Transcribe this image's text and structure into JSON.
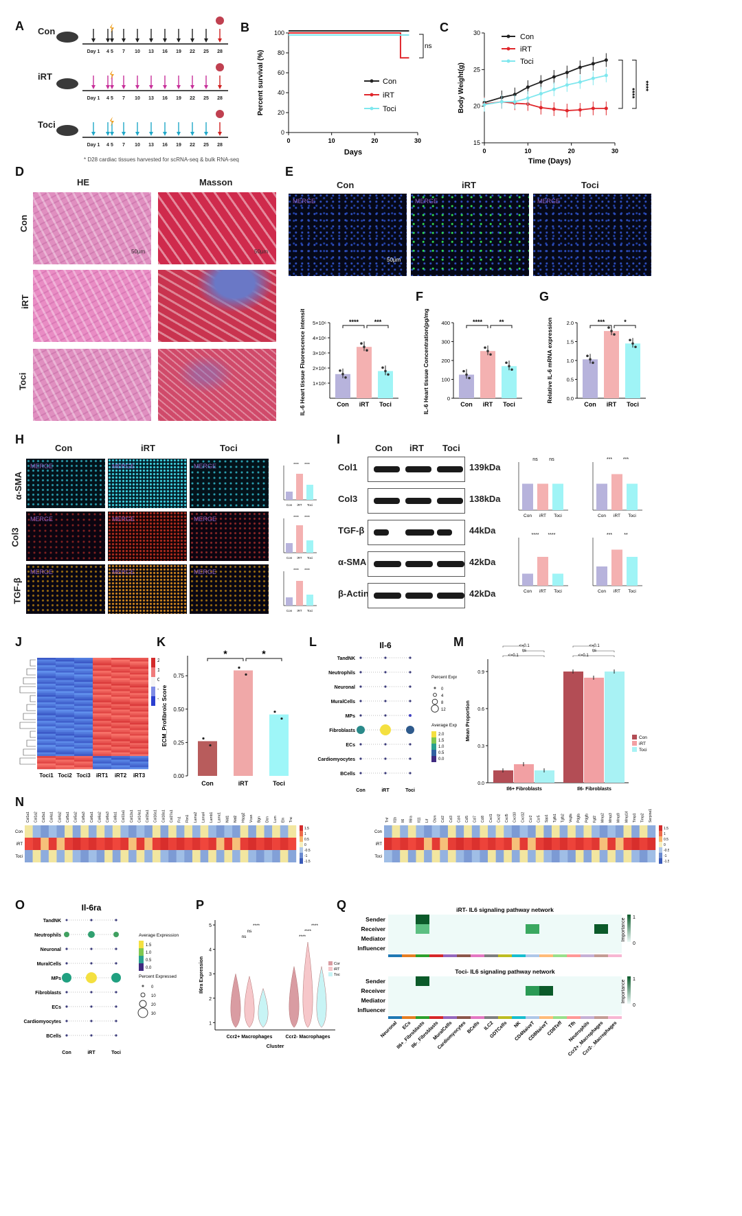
{
  "panels": {
    "A": "A",
    "B": "B",
    "C": "C",
    "D": "D",
    "E": "E",
    "F": "F",
    "G": "G",
    "H": "H",
    "I": "I",
    "J": "J",
    "K": "K",
    "L": "L",
    "M": "M",
    "N": "N",
    "O": "O",
    "P": "P",
    "Q": "Q"
  },
  "groups": [
    "Con",
    "iRT",
    "Toci"
  ],
  "colors": {
    "con": "#b7b3dc",
    "irt": "#f4b1b1",
    "toci": "#9ff4f6",
    "con_line": "#222222",
    "irt_line": "#e0262b",
    "toci_line": "#7fe7ee"
  },
  "panelA": {
    "days": [
      "Day 1",
      "4",
      "5",
      "7",
      "10",
      "13",
      "16",
      "19",
      "22",
      "25",
      "28"
    ],
    "footnote": "* D28 cardiac tissues harvested for scRNA-seq & bulk RNA-seq"
  },
  "panelB": {
    "ylabel": "Percent survival (%)",
    "xlabel": "Days",
    "ns": "ns",
    "yticks": [
      "0",
      "20",
      "40",
      "60",
      "80",
      "100"
    ],
    "xticks": [
      "0",
      "10",
      "20",
      "30"
    ]
  },
  "panelC": {
    "ylabel": "Body Weight(g)",
    "xlabel": "Time (Days)",
    "sig": "****",
    "yticks": [
      "15",
      "20",
      "25",
      "30"
    ],
    "xticks": [
      "0",
      "10",
      "20",
      "30"
    ]
  },
  "panelD": {
    "cols": [
      "HE",
      "Masson"
    ],
    "rows": [
      "Con",
      "iRT",
      "Toci"
    ],
    "scale": "50µm"
  },
  "panelE": {
    "cols": [
      "Con",
      "iRT",
      "Toci"
    ],
    "merge": "MERGE",
    "scale": "50µm"
  },
  "panelF_il6_fluor": {
    "ylabel": "IL-6 Heart tissue Fluorescence intensity",
    "yticks": [
      "1×10⁶",
      "2×10⁶",
      "3×10⁶",
      "4×10⁶",
      "5×10⁶"
    ],
    "sig1": "****",
    "sig2": "***"
  },
  "panelF": {
    "ylabel": "IL-6 Heart tissue Concentration(pg/mg)",
    "yticks": [
      "0",
      "100",
      "200",
      "300",
      "400"
    ],
    "sig1": "****",
    "sig2": "**"
  },
  "panelG": {
    "ylabel": "Relative IL-6 mRNA expression",
    "yticks": [
      "0.0",
      "0.5",
      "1.0",
      "1.5",
      "2.0"
    ],
    "sig1": "***",
    "sig2": "*"
  },
  "panelH": {
    "cols": [
      "Con",
      "iRT",
      "Toci"
    ],
    "rows": [
      "α-SMA",
      "Col3",
      "TGF-β"
    ],
    "merge": "MERGE",
    "scale": "50µm",
    "sig": "****"
  },
  "panelI": {
    "cols": [
      "Con",
      "iRT",
      "Toci"
    ],
    "proteins": [
      "Col1",
      "Col3",
      "TGF-β",
      "α-SMA",
      "β-Actin"
    ],
    "kda": [
      "139kDa",
      "138kDa",
      "44kDa",
      "42kDa",
      "42kDa"
    ],
    "bar_sigs": [
      [
        "ns",
        "ns"
      ],
      [
        "***",
        "***"
      ],
      [
        "****",
        "****"
      ],
      [
        "***",
        "**"
      ]
    ]
  },
  "panelJ": {
    "samples": [
      "Toci1",
      "Toci2",
      "Toci3",
      "iRT1",
      "iRT2",
      "iRT3"
    ],
    "scale": [
      "2",
      "1",
      "0",
      "-1",
      "-2"
    ]
  },
  "panelK": {
    "ylabel": "ECM_Profibroic Score",
    "yticks": [
      "0.00",
      "0.25",
      "0.50",
      "0.75"
    ],
    "sig": "*"
  },
  "panelL": {
    "title": "Il-6",
    "cells": [
      "TandNK",
      "Neutrophils",
      "Neuronal",
      "MuralCells",
      "MPs",
      "Fibroblasts",
      "ECs",
      "Cardiomyocytes",
      "BCells"
    ],
    "pct_title": "Percent Expressed",
    "pct": [
      "0",
      "4",
      "8",
      "12"
    ],
    "avg_title": "Average Expression",
    "avg": [
      "2.0",
      "1.5",
      "1.0",
      "0.5",
      "0.0"
    ]
  },
  "panelM": {
    "ylabel": "Mean Proportion",
    "cats": [
      "Il6+ Fibroblasts",
      "Il6- Fibroblasts"
    ],
    "yticks": [
      "0.0",
      "0.3",
      "0.6",
      "0.9"
    ],
    "p1": "ns",
    "p2": "<=0.1"
  },
  "panelN": {
    "genes_left": [
      "Col1a1",
      "Col1a2",
      "Col3a1",
      "Col4a1",
      "Col4a2",
      "Col5a1",
      "Col5a2",
      "Col5a3",
      "Col6a1",
      "Col6a2",
      "Col6a3",
      "Col8a1",
      "Col11a1",
      "Col12a1",
      "Col14a1",
      "Col15a1",
      "Col16a1",
      "Col18a1",
      "Col27a1",
      "Fn1",
      "Fbn1",
      "Lama2",
      "Lama4",
      "Lamb1",
      "Lamc1",
      "Nid1",
      "Nid2",
      "Hspg2",
      "Vcan",
      "Bgn",
      "Dcn",
      "Lum",
      "Eln",
      "Tnc"
    ],
    "genes_right": [
      "Tnf",
      "Il1b",
      "Il6",
      "Il6ra",
      "Il11",
      "Lif",
      "Osm",
      "Ccl2",
      "Ccl3",
      "Ccl4",
      "Ccl5",
      "Ccl7",
      "Ccl8",
      "Cxcl1",
      "Cxcl2",
      "Cxcl5",
      "Cxcl10",
      "Cxcl12",
      "Ccr2",
      "Ccr5",
      "Spp1",
      "Tgfb1",
      "Tgfb2",
      "Vegfa",
      "Pdgfa",
      "Pdgfb",
      "Fgf2",
      "Mmp2",
      "Mmp3",
      "Mmp9",
      "Mmp14",
      "Timp1",
      "Timp2",
      "Serpine1"
    ],
    "rows": [
      "Con",
      "iRT",
      "Toci"
    ],
    "scale": [
      "1.5",
      "1",
      "0.5",
      "0",
      "-0.5",
      "-1",
      "-1.5"
    ]
  },
  "panelO": {
    "title": "Il-6ra",
    "cells": [
      "TandNK",
      "Neutrophils",
      "Neuronal",
      "MuralCells",
      "MPs",
      "Fibroblasts",
      "ECs",
      "Cardiomyocytes",
      "BCells"
    ],
    "avg_title": "Average Expression",
    "avg": [
      "1.5",
      "1.0",
      "0.5",
      "0.0"
    ],
    "pct_title": "Percent Expressed",
    "pct": [
      "0",
      "10",
      "20",
      "30"
    ]
  },
  "panelP": {
    "ylabel": "Il6ra Expression",
    "xlabel": "Cluster",
    "cats": [
      "Ccr2+ Macrophages",
      "Ccr2- Macrophages"
    ],
    "yticks": [
      "1",
      "2",
      "3",
      "4",
      "5"
    ],
    "sig": "****",
    "ns": "ns"
  },
  "panelQ": {
    "title_irt": "iRT- IL6 signaling pathway network",
    "title_toci": "Toci- IL6 signaling pathway network",
    "roles": [
      "Sender",
      "Receiver",
      "Mediator",
      "Influencer"
    ],
    "importance": "Importance",
    "cells": [
      "Neuronal",
      "ECs",
      "Il6+_Fibroblasts",
      "Il6-_Fibroblasts",
      "MuralCells",
      "Cardiomyocytes",
      "BCells",
      "ILC2",
      "GDTCells",
      "NK",
      "CD4NaiveT",
      "CD8NaiveT",
      "CD8Teff",
      "Tfh",
      "Neutrophils",
      "Ccr2+_Macrophages",
      "Ccr2-_Macrophages"
    ],
    "scale": [
      "1",
      "0"
    ]
  },
  "chart_data": [
    {
      "panel": "B",
      "type": "line",
      "xlabel": "Days",
      "ylabel": "Percent survival (%)",
      "xlim": [
        0,
        30
      ],
      "ylim": [
        0,
        100
      ],
      "series": [
        {
          "name": "Con",
          "x": [
            0,
            28
          ],
          "y": [
            100,
            100
          ]
        },
        {
          "name": "iRT",
          "x": [
            0,
            26,
            26,
            28
          ],
          "y": [
            100,
            100,
            75,
            75
          ]
        },
        {
          "name": "Toci",
          "x": [
            0,
            28
          ],
          "y": [
            100,
            100
          ]
        }
      ]
    },
    {
      "panel": "C",
      "type": "line",
      "xlabel": "Time (Days)",
      "ylabel": "Body Weight(g)",
      "xlim": [
        0,
        30
      ],
      "ylim": [
        15,
        30
      ],
      "x": [
        0,
        4,
        7,
        10,
        13,
        16,
        19,
        22,
        25,
        28
      ],
      "series": [
        {
          "name": "Con",
          "y": [
            20.5,
            21.2,
            21.6,
            22.6,
            23.3,
            24.0,
            24.6,
            25.3,
            25.8,
            26.3
          ]
        },
        {
          "name": "iRT",
          "y": [
            20.3,
            20.6,
            20.4,
            20.3,
            19.8,
            19.6,
            19.4,
            19.5,
            19.7,
            19.7
          ]
        },
        {
          "name": "Toci",
          "y": [
            20.2,
            20.6,
            20.6,
            21.1,
            21.7,
            22.3,
            22.9,
            23.3,
            23.8,
            24.2
          ]
        }
      ]
    },
    {
      "panel": "E-quant",
      "type": "bar",
      "categories": [
        "Con",
        "iRT",
        "Toci"
      ],
      "values": [
        1600000,
        3400000,
        1800000
      ],
      "ylim": [
        0,
        5000000
      ]
    },
    {
      "panel": "F",
      "type": "bar",
      "categories": [
        "Con",
        "iRT",
        "Toci"
      ],
      "values": [
        125,
        250,
        170
      ],
      "ylim": [
        0,
        400
      ]
    },
    {
      "panel": "G",
      "type": "bar",
      "categories": [
        "Con",
        "iRT",
        "Toci"
      ],
      "values": [
        1.03,
        1.78,
        1.45
      ],
      "ylim": [
        0,
        2
      ]
    },
    {
      "panel": "K",
      "type": "bar",
      "categories": [
        "Con",
        "iRT",
        "Toci"
      ],
      "values": [
        0.26,
        0.79,
        0.46
      ],
      "ylim": [
        0,
        0.9
      ]
    },
    {
      "panel": "M",
      "type": "bar",
      "categories": [
        "Il6+ Fibroblasts",
        "Il6- Fibroblasts"
      ],
      "series": [
        {
          "name": "Con",
          "values": [
            0.1,
            0.9
          ]
        },
        {
          "name": "iRT",
          "values": [
            0.15,
            0.85
          ]
        },
        {
          "name": "Toci",
          "values": [
            0.1,
            0.9
          ]
        }
      ],
      "ylim": [
        0,
        1.0
      ]
    }
  ]
}
